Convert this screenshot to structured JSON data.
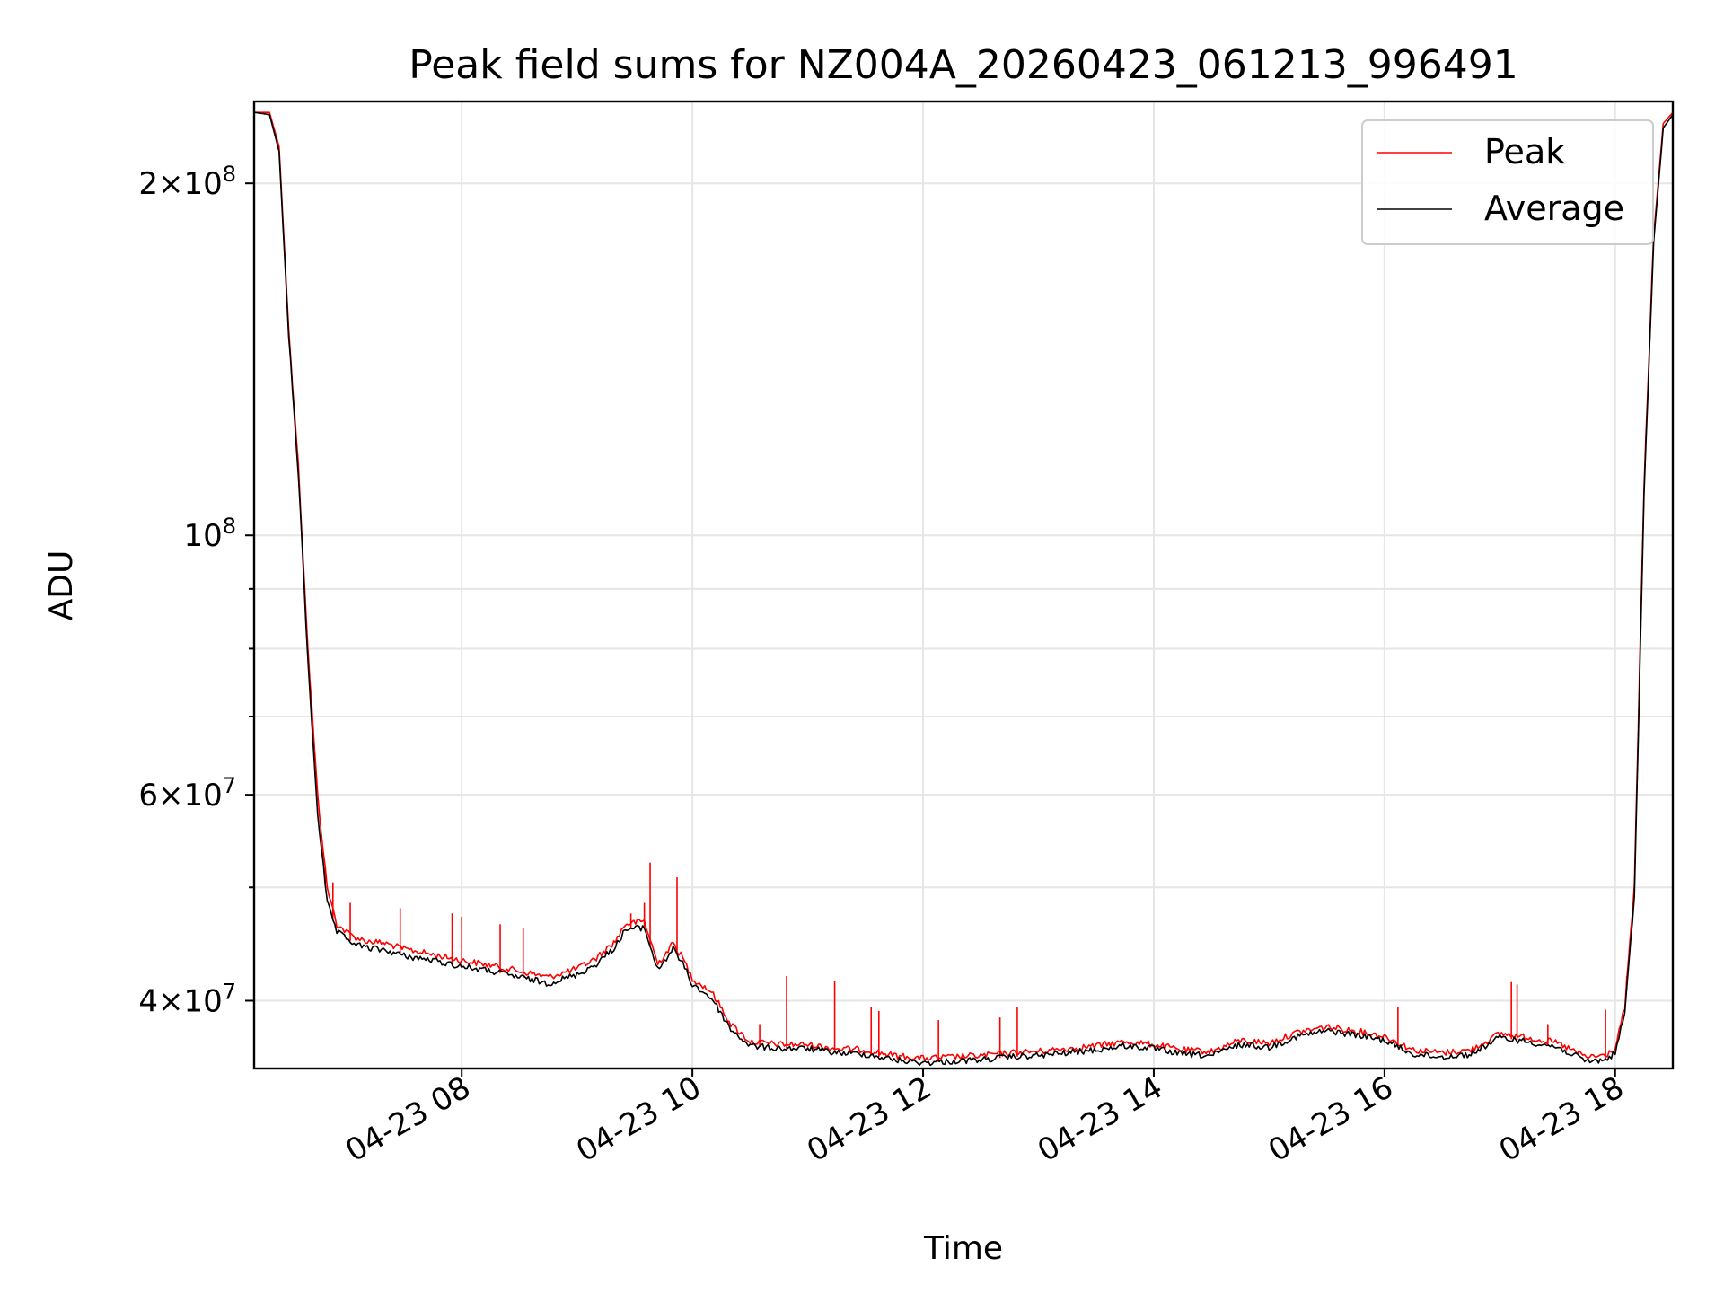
{
  "chart_data": {
    "type": "line",
    "title": "Peak field sums for NZ004A_20260423_061213_996491",
    "xlabel": "Time",
    "ylabel": "ADU",
    "xlim": [
      "2026-04-23 06:12",
      "2026-04-23 18:30"
    ],
    "ylim": [
      35000000,
      235000000
    ],
    "yscale": "log",
    "grid": true,
    "legend_position": "upper right",
    "x_ticks": [
      {
        "value": "2026-04-23 08:00",
        "label": "04-23 08"
      },
      {
        "value": "2026-04-23 10:00",
        "label": "04-23 10"
      },
      {
        "value": "2026-04-23 12:00",
        "label": "04-23 12"
      },
      {
        "value": "2026-04-23 14:00",
        "label": "04-23 14"
      },
      {
        "value": "2026-04-23 16:00",
        "label": "04-23 16"
      },
      {
        "value": "2026-04-23 18:00",
        "label": "04-23 18"
      }
    ],
    "y_ticks": [
      {
        "value": 40000000,
        "mantissa": "4",
        "base": "10",
        "exp": "7"
      },
      {
        "value": 60000000,
        "mantissa": "6",
        "base": "10",
        "exp": "7"
      },
      {
        "value": 100000000,
        "mantissa": "",
        "base": "10",
        "exp": "8"
      },
      {
        "value": 200000000,
        "mantissa": "2",
        "base": "10",
        "exp": "8"
      }
    ],
    "y_minor_ticks": [
      50000000,
      70000000,
      80000000,
      90000000
    ],
    "series": [
      {
        "name": "Peak",
        "color": "#ff0000",
        "x": [
          "2026-04-23 06:12",
          "2026-04-23 06:20",
          "2026-04-23 06:25",
          "2026-04-23 06:30",
          "2026-04-23 06:35",
          "2026-04-23 06:40",
          "2026-04-23 06:45",
          "2026-04-23 06:50",
          "2026-04-23 06:55",
          "2026-04-23 07:00",
          "2026-04-23 07:05",
          "2026-04-23 07:10",
          "2026-04-23 07:20",
          "2026-04-23 07:30",
          "2026-04-23 07:45",
          "2026-04-23 08:00",
          "2026-04-23 08:15",
          "2026-04-23 08:30",
          "2026-04-23 08:45",
          "2026-04-23 09:00",
          "2026-04-23 09:10",
          "2026-04-23 09:20",
          "2026-04-23 09:25",
          "2026-04-23 09:35",
          "2026-04-23 09:42",
          "2026-04-23 09:50",
          "2026-04-23 09:55",
          "2026-04-23 10:00",
          "2026-04-23 10:10",
          "2026-04-23 10:20",
          "2026-04-23 10:30",
          "2026-04-23 10:45",
          "2026-04-23 11:00",
          "2026-04-23 11:15",
          "2026-04-23 11:30",
          "2026-04-23 11:45",
          "2026-04-23 12:00",
          "2026-04-23 12:15",
          "2026-04-23 12:30",
          "2026-04-23 12:45",
          "2026-04-23 13:00",
          "2026-04-23 13:15",
          "2026-04-23 13:30",
          "2026-04-23 13:45",
          "2026-04-23 14:00",
          "2026-04-23 14:15",
          "2026-04-23 14:30",
          "2026-04-23 14:45",
          "2026-04-23 15:00",
          "2026-04-23 15:15",
          "2026-04-23 15:30",
          "2026-04-23 15:45",
          "2026-04-23 16:00",
          "2026-04-23 16:15",
          "2026-04-23 16:30",
          "2026-04-23 16:45",
          "2026-04-23 17:00",
          "2026-04-23 17:15",
          "2026-04-23 17:30",
          "2026-04-23 17:45",
          "2026-04-23 17:55",
          "2026-04-23 18:00",
          "2026-04-23 18:05",
          "2026-04-23 18:10",
          "2026-04-23 18:15",
          "2026-04-23 18:20",
          "2026-04-23 18:25",
          "2026-04-23 18:30"
        ],
        "y": [
          230000000,
          230000000,
          215000000,
          150000000,
          115000000,
          80000000,
          60000000,
          50000000,
          46500000,
          45800000,
          45300000,
          45000000,
          44800000,
          44300000,
          43800000,
          43300000,
          42900000,
          42400000,
          41900000,
          42600000,
          43500000,
          45000000,
          46500000,
          46800000,
          43000000,
          44800000,
          43500000,
          41800000,
          40700000,
          38200000,
          36900000,
          36700000,
          36700000,
          36400000,
          36300000,
          35900000,
          35700000,
          35800000,
          35900000,
          36100000,
          36200000,
          36400000,
          36600000,
          36900000,
          36700000,
          36300000,
          36200000,
          37000000,
          36800000,
          37600000,
          38000000,
          37700000,
          37300000,
          36300000,
          36100000,
          36300000,
          37500000,
          37200000,
          36800000,
          35800000,
          35900000,
          36400000,
          39500000,
          50000000,
          110000000,
          180000000,
          225000000,
          230000000
        ]
      },
      {
        "name": "Average",
        "color": "#000000",
        "x": [
          "2026-04-23 06:12",
          "2026-04-23 06:20",
          "2026-04-23 06:25",
          "2026-04-23 06:30",
          "2026-04-23 06:35",
          "2026-04-23 06:40",
          "2026-04-23 06:45",
          "2026-04-23 06:50",
          "2026-04-23 06:55",
          "2026-04-23 07:00",
          "2026-04-23 07:05",
          "2026-04-23 07:10",
          "2026-04-23 07:20",
          "2026-04-23 07:30",
          "2026-04-23 07:45",
          "2026-04-23 08:00",
          "2026-04-23 08:15",
          "2026-04-23 08:30",
          "2026-04-23 08:45",
          "2026-04-23 09:00",
          "2026-04-23 09:10",
          "2026-04-23 09:20",
          "2026-04-23 09:25",
          "2026-04-23 09:35",
          "2026-04-23 09:42",
          "2026-04-23 09:50",
          "2026-04-23 09:55",
          "2026-04-23 10:00",
          "2026-04-23 10:10",
          "2026-04-23 10:20",
          "2026-04-23 10:30",
          "2026-04-23 10:45",
          "2026-04-23 11:00",
          "2026-04-23 11:15",
          "2026-04-23 11:30",
          "2026-04-23 11:45",
          "2026-04-23 12:00",
          "2026-04-23 12:15",
          "2026-04-23 12:30",
          "2026-04-23 12:45",
          "2026-04-23 13:00",
          "2026-04-23 13:15",
          "2026-04-23 13:30",
          "2026-04-23 13:45",
          "2026-04-23 14:00",
          "2026-04-23 14:15",
          "2026-04-23 14:30",
          "2026-04-23 14:45",
          "2026-04-23 15:00",
          "2026-04-23 15:15",
          "2026-04-23 15:30",
          "2026-04-23 15:45",
          "2026-04-23 16:00",
          "2026-04-23 16:15",
          "2026-04-23 16:30",
          "2026-04-23 16:45",
          "2026-04-23 17:00",
          "2026-04-23 17:15",
          "2026-04-23 17:30",
          "2026-04-23 17:45",
          "2026-04-23 17:55",
          "2026-04-23 18:00",
          "2026-04-23 18:05",
          "2026-04-23 18:10",
          "2026-04-23 18:15",
          "2026-04-23 18:20",
          "2026-04-23 18:25",
          "2026-04-23 18:30"
        ],
        "y": [
          230000000,
          229000000,
          213000000,
          148000000,
          113000000,
          78000000,
          58000000,
          48500000,
          45800000,
          45200000,
          44700000,
          44400000,
          44200000,
          43700000,
          43300000,
          42800000,
          42400000,
          41900000,
          41400000,
          42100000,
          43000000,
          44500000,
          46000000,
          46200000,
          42500000,
          44300000,
          43000000,
          41300000,
          40200000,
          37800000,
          36600000,
          36400000,
          36400000,
          36100000,
          36000000,
          35600000,
          35400000,
          35500000,
          35600000,
          35800000,
          35900000,
          36100000,
          36300000,
          36600000,
          36400000,
          36000000,
          35900000,
          36700000,
          36500000,
          37300000,
          37700000,
          37400000,
          37000000,
          36000000,
          35800000,
          36000000,
          37200000,
          36900000,
          36500000,
          35500000,
          35600000,
          36100000,
          39000000,
          49000000,
          108000000,
          178000000,
          223000000,
          229000000
        ]
      }
    ],
    "spikes": {
      "x": [
        "2026-04-23 06:49",
        "2026-04-23 06:53",
        "2026-04-23 07:02",
        "2026-04-23 07:28",
        "2026-04-23 07:55",
        "2026-04-23 08:00",
        "2026-04-23 08:20",
        "2026-04-23 08:32",
        "2026-04-23 09:28",
        "2026-04-23 09:35",
        "2026-04-23 09:38",
        "2026-04-23 09:52",
        "2026-04-23 10:35",
        "2026-04-23 10:49",
        "2026-04-23 11:14",
        "2026-04-23 11:33",
        "2026-04-23 11:37",
        "2026-04-23 12:08",
        "2026-04-23 12:40",
        "2026-04-23 12:49",
        "2026-04-23 16:07",
        "2026-04-23 17:06",
        "2026-04-23 17:09",
        "2026-04-23 17:25",
        "2026-04-23 17:55",
        "2026-04-23 18:06"
      ],
      "y": [
        52000000,
        50500000,
        48500000,
        48000000,
        47500000,
        47200000,
        46500000,
        46200000,
        47500000,
        48500000,
        52500000,
        51000000,
        38200000,
        42000000,
        41600000,
        39500000,
        39200000,
        38500000,
        38700000,
        39500000,
        39500000,
        41500000,
        41300000,
        38200000,
        39300000,
        42000000
      ]
    },
    "legend": [
      {
        "label": "Peak",
        "color": "#ff0000"
      },
      {
        "label": "Average",
        "color": "#000000"
      }
    ]
  }
}
